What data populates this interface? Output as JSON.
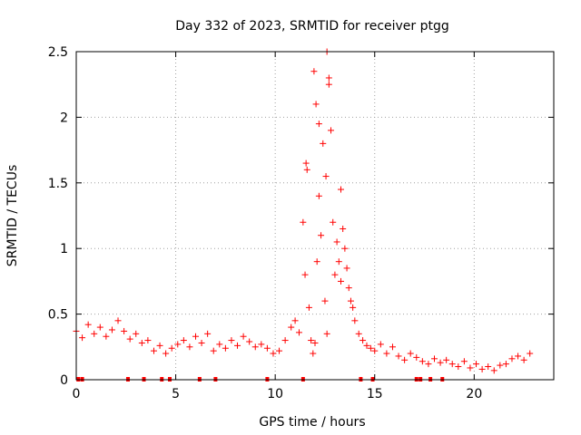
{
  "chart_data": {
    "type": "scatter",
    "title": "Day 332 of 2023, SRMTID for receiver ptgg",
    "xlabel": "GPS time / hours",
    "ylabel": "SRMTID / TECUs",
    "xlim": [
      0,
      24
    ],
    "ylim": [
      0,
      2.5
    ],
    "xticks": [
      0,
      5,
      10,
      15,
      20
    ],
    "xtick_labels": [
      "0",
      "5",
      "10",
      "15",
      "20"
    ],
    "yticks": [
      0,
      0.5,
      1,
      1.5,
      2,
      2.5
    ],
    "ytick_labels": [
      "0",
      "0.5",
      "1",
      "1.5",
      "2",
      "2.5"
    ],
    "grid": true,
    "marker": "+",
    "color": "#ff0000",
    "series": [
      {
        "name": "SRMTID",
        "x": [
          0.0,
          0.3,
          0.6,
          0.9,
          1.2,
          1.5,
          1.8,
          2.1,
          2.4,
          2.7,
          3.0,
          3.3,
          3.6,
          3.9,
          4.2,
          4.5,
          4.8,
          5.1,
          5.4,
          5.7,
          6.0,
          6.3,
          6.6,
          6.9,
          7.2,
          7.5,
          7.8,
          8.1,
          8.4,
          8.7,
          9.0,
          9.3,
          9.6,
          9.9,
          10.2,
          10.5,
          10.8,
          11.0,
          11.2,
          11.4,
          11.5,
          11.6,
          11.7,
          11.8,
          11.9,
          12.0,
          12.1,
          12.2,
          12.3,
          12.4,
          12.5,
          12.6,
          12.7,
          12.8,
          12.9,
          13.0,
          13.1,
          13.2,
          13.3,
          13.4,
          13.5,
          13.6,
          13.7,
          13.8,
          13.9,
          14.0,
          14.2,
          14.4,
          14.6,
          14.8,
          15.0,
          15.3,
          15.6,
          15.9,
          16.2,
          16.5,
          16.8,
          17.1,
          17.4,
          17.7,
          18.0,
          18.3,
          18.6,
          18.9,
          19.2,
          19.5,
          19.8,
          20.1,
          20.4,
          20.7,
          21.0,
          21.3,
          21.6,
          21.9,
          22.2,
          22.5,
          22.8
        ],
        "y": [
          0.37,
          0.32,
          0.42,
          0.35,
          0.4,
          0.33,
          0.38,
          0.45,
          0.37,
          0.31,
          0.35,
          0.28,
          0.3,
          0.22,
          0.26,
          0.2,
          0.24,
          0.27,
          0.3,
          0.25,
          0.33,
          0.28,
          0.35,
          0.22,
          0.27,
          0.24,
          0.3,
          0.26,
          0.33,
          0.29,
          0.25,
          0.27,
          0.24,
          0.2,
          0.22,
          0.3,
          0.4,
          0.45,
          0.36,
          1.2,
          0.8,
          1.6,
          0.55,
          0.3,
          0.2,
          0.28,
          0.9,
          1.4,
          1.1,
          1.8,
          0.6,
          0.35,
          2.25,
          1.9,
          1.2,
          0.8,
          1.05,
          0.9,
          0.75,
          1.15,
          1.0,
          0.85,
          0.7,
          0.6,
          0.55,
          0.45,
          0.35,
          0.3,
          0.26,
          0.24,
          0.22,
          0.27,
          0.2,
          0.25,
          0.18,
          0.15,
          0.2,
          0.17,
          0.14,
          0.12,
          0.16,
          0.13,
          0.15,
          0.12,
          0.1,
          0.14,
          0.09,
          0.12,
          0.08,
          0.1,
          0.07,
          0.11,
          0.12,
          0.16,
          0.18,
          0.15,
          0.2
        ]
      }
    ],
    "outliers": [
      {
        "x": 11.95,
        "y": 2.35
      },
      {
        "x": 12.6,
        "y": 2.5
      },
      {
        "x": 12.7,
        "y": 2.3
      },
      {
        "x": 12.05,
        "y": 2.1
      },
      {
        "x": 12.2,
        "y": 1.95
      },
      {
        "x": 11.55,
        "y": 1.65
      },
      {
        "x": 13.3,
        "y": 1.45
      },
      {
        "x": 12.55,
        "y": 1.55
      }
    ],
    "zero_markers_x": [
      0.1,
      0.3,
      2.6,
      3.4,
      4.3,
      4.7,
      6.2,
      7.0,
      9.6,
      11.4,
      14.3,
      14.9,
      17.1,
      17.3,
      17.8,
      18.4
    ]
  }
}
